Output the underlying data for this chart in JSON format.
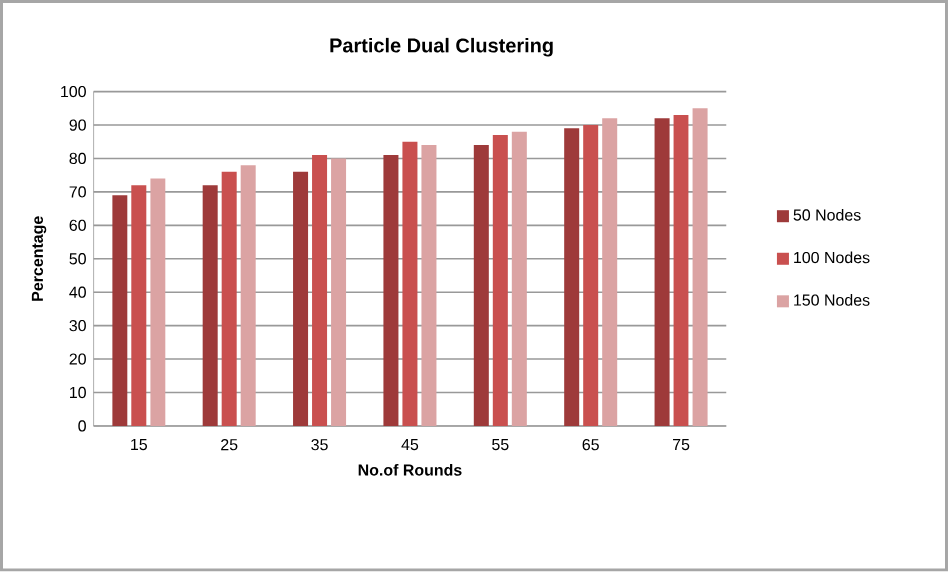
{
  "chart_data": {
    "type": "bar",
    "title": "Particle Dual Clustering",
    "xlabel": "No.of Rounds",
    "ylabel": "Percentage",
    "categories": [
      "15",
      "25",
      "35",
      "45",
      "55",
      "65",
      "75"
    ],
    "series": [
      {
        "name": "50 Nodes",
        "color": "#9e3a3a",
        "values": [
          69,
          72,
          76,
          81,
          84,
          89,
          92
        ]
      },
      {
        "name": "100 Nodes",
        "color": "#c9504f",
        "values": [
          72,
          76,
          81,
          85,
          87,
          90,
          93
        ]
      },
      {
        "name": "150 Nodes",
        "color": "#dba3a3",
        "values": [
          74,
          78,
          80,
          84,
          88,
          92,
          95
        ]
      }
    ],
    "ylim": [
      0,
      100
    ],
    "yticks": [
      0,
      10,
      20,
      30,
      40,
      50,
      60,
      70,
      80,
      90,
      100
    ],
    "grid": "y",
    "legend": "right"
  }
}
